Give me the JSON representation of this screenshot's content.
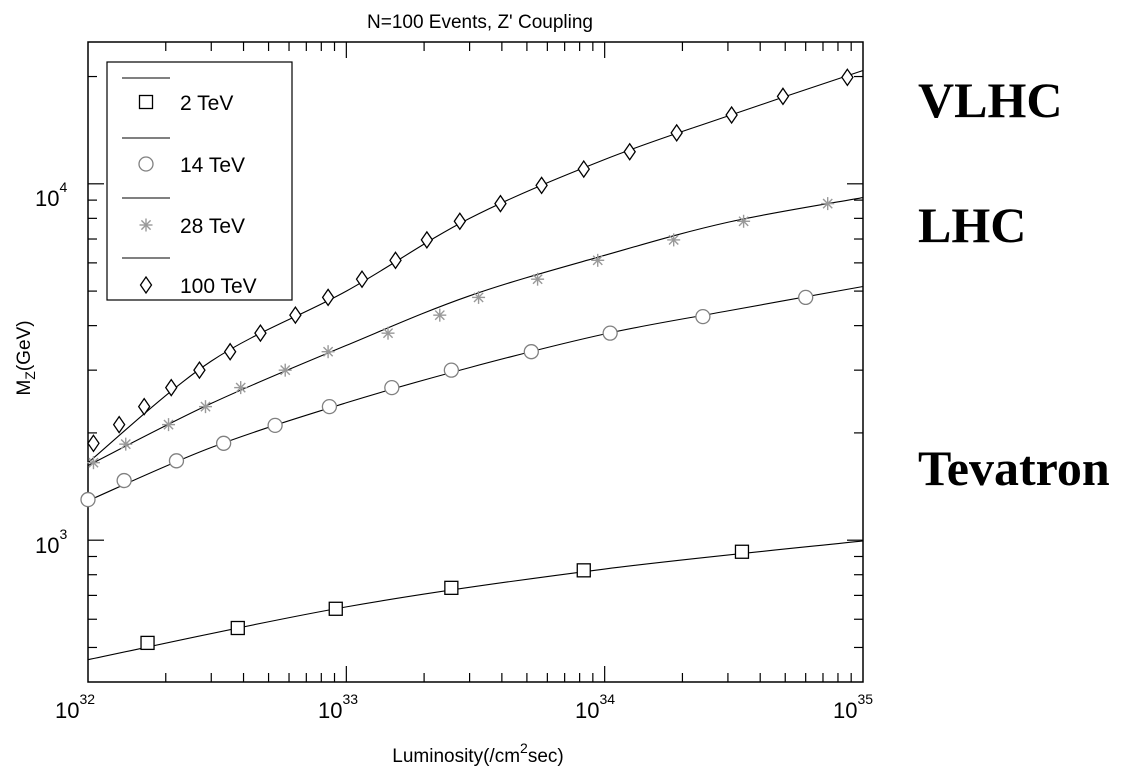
{
  "chart_data": {
    "type": "line",
    "title": "N=100 Events, Z' Coupling",
    "xlabel": {
      "prefix": "Luminosity(/cm",
      "sup": "2",
      "suffix": "sec)"
    },
    "ylabel": {
      "base": "M",
      "sub": "Z",
      "suffix": "(GeV)"
    },
    "xscale": "log",
    "yscale": "log",
    "xlim": [
      1e+32,
      1e+35
    ],
    "ylim": [
      400,
      25000
    ],
    "x_ticks": [
      {
        "base": "10",
        "exp": "32"
      },
      {
        "base": "10",
        "exp": "33"
      },
      {
        "base": "10",
        "exp": "34"
      },
      {
        "base": "10",
        "exp": "35"
      }
    ],
    "y_ticks": [
      {
        "base": "10",
        "exp": "3"
      },
      {
        "base": "10",
        "exp": "4"
      }
    ],
    "legend_position": "top-left",
    "series": [
      {
        "name": "2 TeV",
        "marker": "square",
        "color": "#000000",
        "points": [
          [
            1.7e+32,
            515
          ],
          [
            3.8e+32,
            567
          ],
          [
            9.1e+32,
            642
          ],
          [
            2.55e+33,
            735
          ],
          [
            8.3e+33,
            823
          ],
          [
            3.4e+34,
            928
          ]
        ],
        "line": [
          [
            1e+32,
            462
          ],
          [
            1e+33,
            650
          ],
          [
            1e+34,
            830
          ],
          [
            1e+35,
            995
          ]
        ]
      },
      {
        "name": "14 TeV",
        "marker": "circle",
        "color": "#808080",
        "points": [
          [
            1e+32,
            1300
          ],
          [
            1.38e+32,
            1470
          ],
          [
            2.2e+32,
            1670
          ],
          [
            3.35e+32,
            1870
          ],
          [
            5.3e+32,
            2100
          ],
          [
            8.6e+32,
            2370
          ],
          [
            1.5e+33,
            2680
          ],
          [
            2.55e+33,
            3000
          ],
          [
            5.2e+33,
            3380
          ],
          [
            1.05e+34,
            3810
          ],
          [
            2.4e+34,
            4240
          ],
          [
            6e+34,
            4800
          ]
        ],
        "line": [
          [
            1e+32,
            1290
          ],
          [
            3e+32,
            1820
          ],
          [
            1e+33,
            2430
          ],
          [
            3e+33,
            3050
          ],
          [
            1e+34,
            3790
          ],
          [
            3e+34,
            4400
          ],
          [
            1e+35,
            5150
          ]
        ]
      },
      {
        "name": "28 TeV",
        "marker": "asterisk",
        "color": "#999999",
        "points": [
          [
            1.05e+32,
            1650
          ],
          [
            1.4e+32,
            1860
          ],
          [
            2.05e+32,
            2110
          ],
          [
            2.85e+32,
            2370
          ],
          [
            3.9e+32,
            2680
          ],
          [
            5.8e+32,
            3000
          ],
          [
            8.5e+32,
            3380
          ],
          [
            1.45e+33,
            3810
          ],
          [
            2.3e+33,
            4280
          ],
          [
            3.25e+33,
            4800
          ],
          [
            5.5e+33,
            5400
          ],
          [
            9.4e+33,
            6100
          ],
          [
            1.85e+34,
            6960
          ],
          [
            3.45e+34,
            7850
          ],
          [
            7.3e+34,
            8800
          ]
        ],
        "line": [
          [
            1e+32,
            1620
          ],
          [
            3e+32,
            2420
          ],
          [
            1e+33,
            3520
          ],
          [
            3e+33,
            4850
          ],
          [
            1e+34,
            6300
          ],
          [
            3e+34,
            7800
          ],
          [
            1e+35,
            9150
          ]
        ]
      },
      {
        "name": "100 TeV",
        "marker": "diamond",
        "color": "#000000",
        "points": [
          [
            1.05e+32,
            1870
          ],
          [
            1.32e+32,
            2110
          ],
          [
            1.65e+32,
            2370
          ],
          [
            2.1e+32,
            2680
          ],
          [
            2.7e+32,
            3000
          ],
          [
            3.55e+32,
            3380
          ],
          [
            4.65e+32,
            3810
          ],
          [
            6.35e+32,
            4280
          ],
          [
            8.5e+32,
            4800
          ],
          [
            1.15e+33,
            5400
          ],
          [
            1.55e+33,
            6100
          ],
          [
            2.05e+33,
            6960
          ],
          [
            2.75e+33,
            7850
          ],
          [
            3.95e+33,
            8800
          ],
          [
            5.7e+33,
            9900
          ],
          [
            8.3e+33,
            11000
          ],
          [
            1.25e+34,
            12300
          ],
          [
            1.9e+34,
            13900
          ],
          [
            3.1e+34,
            15600
          ],
          [
            4.9e+34,
            17600
          ],
          [
            8.7e+34,
            19900
          ]
        ],
        "line": [
          [
            1e+32,
            1650
          ],
          [
            3e+32,
            3180
          ],
          [
            1e+33,
            5000
          ],
          [
            3e+33,
            8000
          ],
          [
            1e+34,
            11700
          ],
          [
            3e+34,
            15500
          ],
          [
            1e+35,
            20800
          ]
        ]
      }
    ]
  },
  "side_labels": [
    "VLHC",
    "LHC",
    "Tevatron"
  ]
}
